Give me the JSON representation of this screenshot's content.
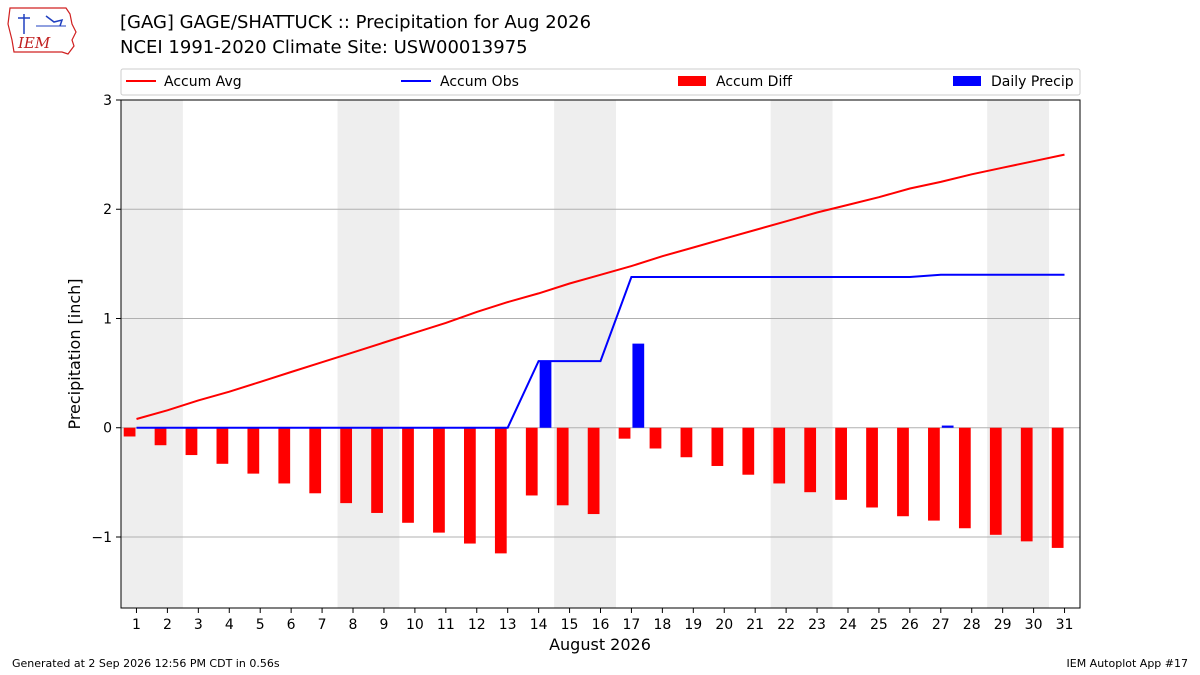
{
  "header": {
    "title_line1": "[GAG] GAGE/SHATTUCK :: Precipitation for Aug 2026",
    "title_line2": "NCEI 1991-2020 Climate Site: USW00013975"
  },
  "logo": {
    "text": "IEM"
  },
  "footer": {
    "generated": "Generated at 2 Sep 2026 12:56 PM CDT in 0.56s",
    "app": "IEM Autoplot App #17"
  },
  "colors": {
    "accum_avg": "#ff0000",
    "accum_obs": "#0000ff",
    "accum_diff": "#ff0000",
    "daily_precip": "#0000ff",
    "weekend_shade": "#eeeeee",
    "grid": "#b0b0b0"
  },
  "chart_data": {
    "type": "bar",
    "xlabel": "August 2026",
    "ylabel": "Precipitation [inch]",
    "xlim": [
      0.5,
      31.5
    ],
    "ylim": [
      -1.65,
      3.0
    ],
    "yticks": [
      -1,
      0,
      1,
      2,
      3
    ],
    "ytick_labels": [
      "−1",
      "0",
      "1",
      "2",
      "3"
    ],
    "grid": "horizontal",
    "legend_placement": "top",
    "legend": [
      "Accum Avg",
      "Accum Obs",
      "Accum Diff",
      "Daily Precip"
    ],
    "days": [
      1,
      2,
      3,
      4,
      5,
      6,
      7,
      8,
      9,
      10,
      11,
      12,
      13,
      14,
      15,
      16,
      17,
      18,
      19,
      20,
      21,
      22,
      23,
      24,
      25,
      26,
      27,
      28,
      29,
      30,
      31
    ],
    "weekend_shading": [
      [
        1,
        2
      ],
      [
        8,
        9
      ],
      [
        15,
        16
      ],
      [
        22,
        23
      ],
      [
        29,
        30
      ]
    ],
    "series": [
      {
        "name": "Accum Avg",
        "kind": "line",
        "values": [
          0.08,
          0.16,
          0.25,
          0.33,
          0.42,
          0.51,
          0.6,
          0.69,
          0.78,
          0.87,
          0.96,
          1.06,
          1.15,
          1.23,
          1.32,
          1.4,
          1.48,
          1.57,
          1.65,
          1.73,
          1.81,
          1.89,
          1.97,
          2.04,
          2.11,
          2.19,
          2.25,
          2.32,
          2.38,
          2.44,
          2.5
        ]
      },
      {
        "name": "Accum Obs",
        "kind": "line",
        "values": [
          0,
          0,
          0,
          0,
          0,
          0,
          0,
          0,
          0,
          0,
          0,
          0,
          0,
          0.61,
          0.61,
          0.61,
          1.38,
          1.38,
          1.38,
          1.38,
          1.38,
          1.38,
          1.38,
          1.38,
          1.38,
          1.38,
          1.4,
          1.4,
          1.4,
          1.4,
          1.4
        ]
      },
      {
        "name": "Accum Diff",
        "kind": "bar",
        "values": [
          -0.08,
          -0.16,
          -0.25,
          -0.33,
          -0.42,
          -0.51,
          -0.6,
          -0.69,
          -0.78,
          -0.87,
          -0.96,
          -1.06,
          -1.15,
          -0.62,
          -0.71,
          -0.79,
          -0.1,
          -0.19,
          -0.27,
          -0.35,
          -0.43,
          -0.51,
          -0.59,
          -0.66,
          -0.73,
          -0.81,
          -0.85,
          -0.92,
          -0.98,
          -1.04,
          -1.1
        ]
      },
      {
        "name": "Daily Precip",
        "kind": "bar",
        "values": [
          0,
          0,
          0,
          0,
          0,
          0,
          0,
          0,
          0,
          0,
          0,
          0,
          0,
          0.61,
          0,
          0,
          0.77,
          0,
          0,
          0,
          0,
          0,
          0,
          0,
          0,
          0,
          0.02,
          0,
          0,
          0,
          0
        ]
      }
    ]
  }
}
